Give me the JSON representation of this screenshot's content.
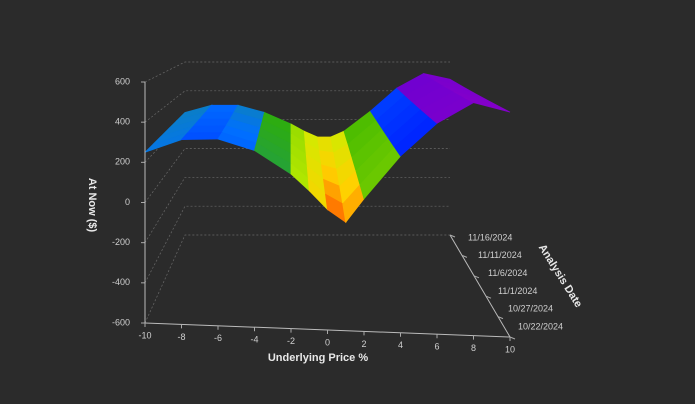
{
  "chart_data": {
    "type": "surface3d",
    "ylabel": "At Now ($)",
    "xlabel": "Underlying Price %",
    "zlabel": "Analysis Date",
    "x": [
      -10,
      -8,
      -6,
      -4,
      -2,
      -1,
      0,
      1,
      2,
      4,
      6,
      8,
      10
    ],
    "xlim": [
      -10,
      10
    ],
    "xticks": [
      -10,
      -8,
      -6,
      -4,
      -2,
      0,
      2,
      4,
      6,
      8,
      10
    ],
    "dates": [
      "10/22/2024",
      "10/27/2024",
      "11/1/2024",
      "11/6/2024",
      "11/11/2024",
      "11/16/2024"
    ],
    "ylim": [
      -600,
      600
    ],
    "yticks": [
      -600,
      -400,
      -200,
      0,
      200,
      400,
      600
    ],
    "values": [
      [
        250,
        320,
        330,
        280,
        170,
        90,
        0,
        -60,
        60,
        280,
        450,
        560,
        520
      ],
      [
        250,
        316,
        324,
        274,
        170,
        96,
        16,
        -32,
        72,
        276,
        444,
        552,
        512
      ],
      [
        250,
        312,
        318,
        268,
        170,
        102,
        32,
        -4,
        84,
        272,
        438,
        544,
        504
      ],
      [
        250,
        308,
        312,
        262,
        170,
        108,
        48,
        24,
        96,
        268,
        432,
        536,
        496
      ],
      [
        250,
        304,
        306,
        256,
        170,
        114,
        64,
        52,
        108,
        264,
        426,
        528,
        488
      ],
      [
        250,
        300,
        300,
        250,
        170,
        120,
        80,
        80,
        120,
        260,
        420,
        520,
        480
      ]
    ],
    "colorscale": [
      "#ff3000",
      "#ffd000",
      "#c8f000",
      "#30b000",
      "#0070ff",
      "#0010ff",
      "#7000d0",
      "#8a00c8"
    ]
  }
}
